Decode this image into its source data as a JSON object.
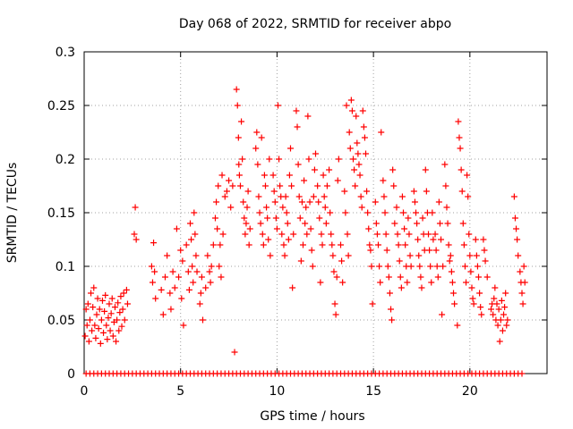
{
  "chart_data": {
    "type": "scatter",
    "title": "Day 068 of 2022, SRMTID for receiver abpo",
    "xlabel": "GPS time / hours",
    "ylabel": "SRMTID / TECUs",
    "xlim": [
      0,
      24
    ],
    "ylim": [
      0,
      0.3
    ],
    "xticks": [
      0,
      5,
      10,
      15,
      20
    ],
    "xtick_labels": [
      "0",
      "5",
      "10",
      "15",
      "20"
    ],
    "yticks": [
      0,
      0.05,
      0.1,
      0.15,
      0.2,
      0.25,
      0.3
    ],
    "ytick_labels": [
      "0",
      "0.05",
      "0.1",
      "0.15",
      "0.2",
      "0.25",
      "0.3"
    ],
    "grid": true,
    "marker": "+",
    "color": "#ff0000",
    "zero_points": [
      0.1,
      0.3,
      0.5,
      0.7,
      0.9,
      1.1,
      1.3,
      1.5,
      1.7,
      1.9,
      2.1,
      2.3,
      2.5,
      2.7,
      2.9,
      3.1,
      3.3,
      3.5,
      3.7,
      3.9,
      4.1,
      4.3,
      4.5,
      4.7,
      4.9,
      5.1,
      5.3,
      5.5,
      5.7,
      5.9,
      6.1,
      6.3,
      6.5,
      6.7,
      6.9,
      7.1,
      7.3,
      7.5,
      7.7,
      7.9,
      8.1,
      8.3,
      8.5,
      8.7,
      8.9,
      9.1,
      9.3,
      9.5,
      9.7,
      9.9,
      10.1,
      10.3,
      10.5,
      10.7,
      10.9,
      11.1,
      11.3,
      11.5,
      11.7,
      11.9,
      12.1,
      12.3,
      12.5,
      12.7,
      12.9,
      13.1,
      13.3,
      13.5,
      13.7,
      13.9,
      14.1,
      14.3,
      14.5,
      14.7,
      14.9,
      15.1,
      15.3,
      15.5,
      15.7,
      15.9,
      16.1,
      16.3,
      16.5,
      16.7,
      16.9,
      17.1,
      17.3,
      17.5,
      17.7,
      17.9,
      18.1,
      18.3,
      18.5,
      18.7,
      18.9,
      19.1,
      19.3,
      19.5,
      19.7,
      19.9,
      20.1,
      20.3,
      20.5,
      20.7,
      20.9,
      21.1,
      21.3,
      21.5,
      21.7,
      21.9,
      22.1,
      22.3,
      22.5,
      22.7
    ],
    "points": [
      [
        0.05,
        0.035
      ],
      [
        0.1,
        0.06
      ],
      [
        0.15,
        0.045
      ],
      [
        0.2,
        0.065
      ],
      [
        0.25,
        0.03
      ],
      [
        0.3,
        0.05
      ],
      [
        0.35,
        0.075
      ],
      [
        0.4,
        0.04
      ],
      [
        0.45,
        0.062
      ],
      [
        0.5,
        0.08
      ],
      [
        0.55,
        0.045
      ],
      [
        0.6,
        0.033
      ],
      [
        0.65,
        0.055
      ],
      [
        0.7,
        0.07
      ],
      [
        0.75,
        0.042
      ],
      [
        0.8,
        0.06
      ],
      [
        0.85,
        0.028
      ],
      [
        0.9,
        0.05
      ],
      [
        0.95,
        0.068
      ],
      [
        1.0,
        0.038
      ],
      [
        1.05,
        0.058
      ],
      [
        1.1,
        0.073
      ],
      [
        1.15,
        0.045
      ],
      [
        1.2,
        0.032
      ],
      [
        1.25,
        0.052
      ],
      [
        1.3,
        0.065
      ],
      [
        1.35,
        0.04
      ],
      [
        1.4,
        0.056
      ],
      [
        1.45,
        0.07
      ],
      [
        1.5,
        0.035
      ],
      [
        1.55,
        0.048
      ],
      [
        1.6,
        0.062
      ],
      [
        1.65,
        0.03
      ],
      [
        1.7,
        0.05
      ],
      [
        1.75,
        0.066
      ],
      [
        1.8,
        0.04
      ],
      [
        1.85,
        0.057
      ],
      [
        1.9,
        0.072
      ],
      [
        1.95,
        0.044
      ],
      [
        2.0,
        0.06
      ],
      [
        2.05,
        0.075
      ],
      [
        2.1,
        0.05
      ],
      [
        2.2,
        0.078
      ],
      [
        2.25,
        0.065
      ],
      [
        2.6,
        0.13
      ],
      [
        2.65,
        0.155
      ],
      [
        2.7,
        0.125
      ],
      [
        3.5,
        0.1
      ],
      [
        3.55,
        0.085
      ],
      [
        3.6,
        0.122
      ],
      [
        3.65,
        0.095
      ],
      [
        3.7,
        0.07
      ],
      [
        4.0,
        0.078
      ],
      [
        4.1,
        0.055
      ],
      [
        4.2,
        0.09
      ],
      [
        4.3,
        0.11
      ],
      [
        4.45,
        0.075
      ],
      [
        4.5,
        0.06
      ],
      [
        4.6,
        0.095
      ],
      [
        4.7,
        0.08
      ],
      [
        4.8,
        0.135
      ],
      [
        4.9,
        0.09
      ],
      [
        5.0,
        0.115
      ],
      [
        5.05,
        0.07
      ],
      [
        5.1,
        0.105
      ],
      [
        5.15,
        0.045
      ],
      [
        5.3,
        0.12
      ],
      [
        5.4,
        0.095
      ],
      [
        5.45,
        0.078
      ],
      [
        5.5,
        0.14
      ],
      [
        5.55,
        0.125
      ],
      [
        5.6,
        0.1
      ],
      [
        5.65,
        0.085
      ],
      [
        5.7,
        0.15
      ],
      [
        5.75,
        0.13
      ],
      [
        5.8,
        0.11
      ],
      [
        5.85,
        0.095
      ],
      [
        6.0,
        0.065
      ],
      [
        6.05,
        0.075
      ],
      [
        6.1,
        0.09
      ],
      [
        6.15,
        0.05
      ],
      [
        6.3,
        0.08
      ],
      [
        6.4,
        0.11
      ],
      [
        6.5,
        0.095
      ],
      [
        6.55,
        0.085
      ],
      [
        6.6,
        0.1
      ],
      [
        6.7,
        0.12
      ],
      [
        6.8,
        0.145
      ],
      [
        6.85,
        0.16
      ],
      [
        6.9,
        0.135
      ],
      [
        6.95,
        0.175
      ],
      [
        7.0,
        0.1
      ],
      [
        7.05,
        0.12
      ],
      [
        7.1,
        0.09
      ],
      [
        7.15,
        0.185
      ],
      [
        7.2,
        0.13
      ],
      [
        7.3,
        0.165
      ],
      [
        7.4,
        0.17
      ],
      [
        7.5,
        0.18
      ],
      [
        7.6,
        0.155
      ],
      [
        7.7,
        0.175
      ],
      [
        7.8,
        0.02
      ],
      [
        7.9,
        0.265
      ],
      [
        7.95,
        0.25
      ],
      [
        8.0,
        0.22
      ],
      [
        8.02,
        0.195
      ],
      [
        8.05,
        0.185
      ],
      [
        8.1,
        0.175
      ],
      [
        8.15,
        0.235
      ],
      [
        8.2,
        0.2
      ],
      [
        8.25,
        0.16
      ],
      [
        8.3,
        0.145
      ],
      [
        8.35,
        0.13
      ],
      [
        8.4,
        0.14
      ],
      [
        8.45,
        0.155
      ],
      [
        8.5,
        0.17
      ],
      [
        8.55,
        0.12
      ],
      [
        8.6,
        0.135
      ],
      [
        8.9,
        0.21
      ],
      [
        8.95,
        0.225
      ],
      [
        9.0,
        0.195
      ],
      [
        9.05,
        0.165
      ],
      [
        9.1,
        0.15
      ],
      [
        9.15,
        0.14
      ],
      [
        9.2,
        0.22
      ],
      [
        9.25,
        0.13
      ],
      [
        9.3,
        0.12
      ],
      [
        9.35,
        0.185
      ],
      [
        9.4,
        0.175
      ],
      [
        9.45,
        0.155
      ],
      [
        9.5,
        0.145
      ],
      [
        9.55,
        0.125
      ],
      [
        9.6,
        0.2
      ],
      [
        9.65,
        0.11
      ],
      [
        9.8,
        0.185
      ],
      [
        9.85,
        0.17
      ],
      [
        9.9,
        0.16
      ],
      [
        9.95,
        0.145
      ],
      [
        10.0,
        0.135
      ],
      [
        10.05,
        0.25
      ],
      [
        10.1,
        0.2
      ],
      [
        10.15,
        0.175
      ],
      [
        10.2,
        0.165
      ],
      [
        10.25,
        0.13
      ],
      [
        10.3,
        0.155
      ],
      [
        10.35,
        0.12
      ],
      [
        10.4,
        0.11
      ],
      [
        10.45,
        0.165
      ],
      [
        10.5,
        0.15
      ],
      [
        10.55,
        0.14
      ],
      [
        10.6,
        0.125
      ],
      [
        10.65,
        0.185
      ],
      [
        10.7,
        0.21
      ],
      [
        10.75,
        0.175
      ],
      [
        10.8,
        0.08
      ],
      [
        10.85,
        0.13
      ],
      [
        11.0,
        0.245
      ],
      [
        11.05,
        0.23
      ],
      [
        11.1,
        0.195
      ],
      [
        11.15,
        0.165
      ],
      [
        11.2,
        0.145
      ],
      [
        11.25,
        0.105
      ],
      [
        11.3,
        0.16
      ],
      [
        11.35,
        0.12
      ],
      [
        11.4,
        0.18
      ],
      [
        11.45,
        0.14
      ],
      [
        11.5,
        0.155
      ],
      [
        11.55,
        0.13
      ],
      [
        11.6,
        0.24
      ],
      [
        11.65,
        0.2
      ],
      [
        11.7,
        0.16
      ],
      [
        11.75,
        0.135
      ],
      [
        11.8,
        0.115
      ],
      [
        11.85,
        0.1
      ],
      [
        11.9,
        0.165
      ],
      [
        11.95,
        0.19
      ],
      [
        12.0,
        0.205
      ],
      [
        12.1,
        0.175
      ],
      [
        12.15,
        0.16
      ],
      [
        12.2,
        0.145
      ],
      [
        12.25,
        0.085
      ],
      [
        12.3,
        0.13
      ],
      [
        12.35,
        0.12
      ],
      [
        12.4,
        0.185
      ],
      [
        12.45,
        0.165
      ],
      [
        12.5,
        0.155
      ],
      [
        12.55,
        0.14
      ],
      [
        12.6,
        0.175
      ],
      [
        12.7,
        0.19
      ],
      [
        12.75,
        0.15
      ],
      [
        12.8,
        0.13
      ],
      [
        12.85,
        0.12
      ],
      [
        12.9,
        0.11
      ],
      [
        12.95,
        0.095
      ],
      [
        13.0,
        0.065
      ],
      [
        13.05,
        0.055
      ],
      [
        13.1,
        0.09
      ],
      [
        13.15,
        0.18
      ],
      [
        13.2,
        0.2
      ],
      [
        13.3,
        0.12
      ],
      [
        13.35,
        0.105
      ],
      [
        13.4,
        0.085
      ],
      [
        13.5,
        0.17
      ],
      [
        13.55,
        0.15
      ],
      [
        13.6,
        0.25
      ],
      [
        13.65,
        0.13
      ],
      [
        13.7,
        0.11
      ],
      [
        13.75,
        0.225
      ],
      [
        13.8,
        0.21
      ],
      [
        13.85,
        0.255
      ],
      [
        13.9,
        0.245
      ],
      [
        13.95,
        0.2
      ],
      [
        14.0,
        0.19
      ],
      [
        14.05,
        0.175
      ],
      [
        14.1,
        0.24
      ],
      [
        14.15,
        0.215
      ],
      [
        14.2,
        0.205
      ],
      [
        14.25,
        0.195
      ],
      [
        14.3,
        0.185
      ],
      [
        14.35,
        0.165
      ],
      [
        14.4,
        0.155
      ],
      [
        14.45,
        0.245
      ],
      [
        14.5,
        0.23
      ],
      [
        14.55,
        0.22
      ],
      [
        14.6,
        0.205
      ],
      [
        14.65,
        0.17
      ],
      [
        14.7,
        0.15
      ],
      [
        14.75,
        0.135
      ],
      [
        14.8,
        0.12
      ],
      [
        14.85,
        0.115
      ],
      [
        14.9,
        0.1
      ],
      [
        14.95,
        0.065
      ],
      [
        15.1,
        0.16
      ],
      [
        15.15,
        0.14
      ],
      [
        15.2,
        0.13
      ],
      [
        15.25,
        0.12
      ],
      [
        15.3,
        0.1
      ],
      [
        15.35,
        0.085
      ],
      [
        15.4,
        0.225
      ],
      [
        15.5,
        0.18
      ],
      [
        15.55,
        0.165
      ],
      [
        15.6,
        0.15
      ],
      [
        15.65,
        0.13
      ],
      [
        15.7,
        0.115
      ],
      [
        15.75,
        0.1
      ],
      [
        15.8,
        0.09
      ],
      [
        15.85,
        0.075
      ],
      [
        15.9,
        0.06
      ],
      [
        15.95,
        0.05
      ],
      [
        16.0,
        0.19
      ],
      [
        16.05,
        0.175
      ],
      [
        16.1,
        0.14
      ],
      [
        16.2,
        0.155
      ],
      [
        16.25,
        0.13
      ],
      [
        16.3,
        0.12
      ],
      [
        16.35,
        0.105
      ],
      [
        16.4,
        0.09
      ],
      [
        16.45,
        0.08
      ],
      [
        16.5,
        0.165
      ],
      [
        16.55,
        0.15
      ],
      [
        16.6,
        0.135
      ],
      [
        16.65,
        0.12
      ],
      [
        16.7,
        0.1
      ],
      [
        16.75,
        0.085
      ],
      [
        16.8,
        0.145
      ],
      [
        16.85,
        0.13
      ],
      [
        16.9,
        0.11
      ],
      [
        16.95,
        0.1
      ],
      [
        17.1,
        0.17
      ],
      [
        17.15,
        0.16
      ],
      [
        17.2,
        0.15
      ],
      [
        17.25,
        0.14
      ],
      [
        17.3,
        0.125
      ],
      [
        17.35,
        0.11
      ],
      [
        17.4,
        0.1
      ],
      [
        17.45,
        0.09
      ],
      [
        17.5,
        0.08
      ],
      [
        17.55,
        0.145
      ],
      [
        17.6,
        0.13
      ],
      [
        17.65,
        0.115
      ],
      [
        17.7,
        0.19
      ],
      [
        17.75,
        0.17
      ],
      [
        17.8,
        0.15
      ],
      [
        17.85,
        0.13
      ],
      [
        17.9,
        0.115
      ],
      [
        17.95,
        0.1
      ],
      [
        18.0,
        0.085
      ],
      [
        18.05,
        0.15
      ],
      [
        18.1,
        0.125
      ],
      [
        18.2,
        0.13
      ],
      [
        18.25,
        0.115
      ],
      [
        18.3,
        0.1
      ],
      [
        18.35,
        0.09
      ],
      [
        18.4,
        0.16
      ],
      [
        18.45,
        0.14
      ],
      [
        18.5,
        0.125
      ],
      [
        18.55,
        0.055
      ],
      [
        18.6,
        0.1
      ],
      [
        18.7,
        0.195
      ],
      [
        18.75,
        0.175
      ],
      [
        18.8,
        0.155
      ],
      [
        18.85,
        0.14
      ],
      [
        18.9,
        0.12
      ],
      [
        18.95,
        0.105
      ],
      [
        19.0,
        0.11
      ],
      [
        19.05,
        0.095
      ],
      [
        19.1,
        0.085
      ],
      [
        19.15,
        0.075
      ],
      [
        19.2,
        0.065
      ],
      [
        19.35,
        0.045
      ],
      [
        19.4,
        0.235
      ],
      [
        19.45,
        0.22
      ],
      [
        19.5,
        0.21
      ],
      [
        19.55,
        0.19
      ],
      [
        19.6,
        0.17
      ],
      [
        19.65,
        0.14
      ],
      [
        19.7,
        0.12
      ],
      [
        19.75,
        0.1
      ],
      [
        19.8,
        0.085
      ],
      [
        19.85,
        0.185
      ],
      [
        19.9,
        0.165
      ],
      [
        19.95,
        0.13
      ],
      [
        20.0,
        0.11
      ],
      [
        20.05,
        0.095
      ],
      [
        20.1,
        0.08
      ],
      [
        20.15,
        0.07
      ],
      [
        20.2,
        0.065
      ],
      [
        20.3,
        0.125
      ],
      [
        20.35,
        0.11
      ],
      [
        20.4,
        0.1
      ],
      [
        20.45,
        0.09
      ],
      [
        20.5,
        0.075
      ],
      [
        20.55,
        0.062
      ],
      [
        20.6,
        0.055
      ],
      [
        20.7,
        0.125
      ],
      [
        20.75,
        0.115
      ],
      [
        20.8,
        0.105
      ],
      [
        20.9,
        0.09
      ],
      [
        21.1,
        0.06
      ],
      [
        21.15,
        0.065
      ],
      [
        21.2,
        0.055
      ],
      [
        21.25,
        0.07
      ],
      [
        21.3,
        0.08
      ],
      [
        21.35,
        0.05
      ],
      [
        21.4,
        0.065
      ],
      [
        21.45,
        0.045
      ],
      [
        21.5,
        0.06
      ],
      [
        21.55,
        0.03
      ],
      [
        21.6,
        0.05
      ],
      [
        21.65,
        0.068
      ],
      [
        21.7,
        0.04
      ],
      [
        21.75,
        0.055
      ],
      [
        21.8,
        0.062
      ],
      [
        21.85,
        0.075
      ],
      [
        21.9,
        0.045
      ],
      [
        21.95,
        0.05
      ],
      [
        22.3,
        0.165
      ],
      [
        22.35,
        0.145
      ],
      [
        22.4,
        0.135
      ],
      [
        22.45,
        0.125
      ],
      [
        22.5,
        0.11
      ],
      [
        22.6,
        0.095
      ],
      [
        22.65,
        0.085
      ],
      [
        22.7,
        0.075
      ],
      [
        22.75,
        0.065
      ],
      [
        22.8,
        0.1
      ],
      [
        22.85,
        0.085
      ]
    ]
  }
}
